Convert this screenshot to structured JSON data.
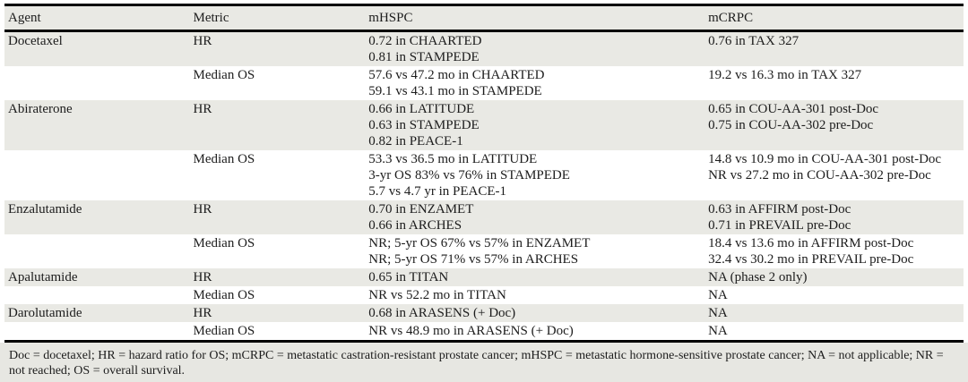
{
  "table": {
    "columns": {
      "agent": "Agent",
      "metric": "Metric",
      "mhspc": "mHSPC",
      "mcrpc": "mCRPC"
    },
    "rows": [
      {
        "agent": "Docetaxel",
        "metric": "HR",
        "mhspc": "0.72 in CHAARTED\n0.81 in STAMPEDE",
        "mcrpc": "0.76 in TAX 327"
      },
      {
        "agent": "",
        "metric": "Median OS",
        "mhspc": "57.6 vs 47.2 mo in CHAARTED\n59.1 vs 43.1 mo in STAMPEDE",
        "mcrpc": "19.2 vs 16.3 mo in TAX 327"
      },
      {
        "agent": "Abiraterone",
        "metric": "HR",
        "mhspc": "0.66 in LATITUDE\n0.63 in STAMPEDE\n0.82 in PEACE-1",
        "mcrpc": "0.65 in COU-AA-301 post-Doc\n0.75 in COU-AA-302 pre-Doc"
      },
      {
        "agent": "",
        "metric": "Median OS",
        "mhspc": "53.3 vs 36.5 mo in LATITUDE\n3-yr OS 83% vs 76% in STAMPEDE\n5.7 vs 4.7 yr in PEACE-1",
        "mcrpc": "14.8 vs 10.9 mo in COU-AA-301 post-Doc\nNR vs 27.2 mo in COU-AA-302 pre-Doc"
      },
      {
        "agent": "Enzalutamide",
        "metric": "HR",
        "mhspc": "0.70 in ENZAMET\n0.66 in ARCHES",
        "mcrpc": "0.63 in AFFIRM post-Doc\n0.71 in PREVAIL pre-Doc"
      },
      {
        "agent": "",
        "metric": "Median OS",
        "mhspc": "NR; 5-yr OS 67% vs 57% in ENZAMET\nNR; 5-yr OS 71% vs 57% in ARCHES",
        "mcrpc": "18.4 vs 13.6 mo in AFFIRM post-Doc\n32.4 vs 30.2 mo in PREVAIL pre-Doc"
      },
      {
        "agent": "Apalutamide",
        "metric": "HR",
        "mhspc": "0.65 in TITAN",
        "mcrpc": "NA (phase 2 only)"
      },
      {
        "agent": "",
        "metric": "Median OS",
        "mhspc": "NR vs 52.2 mo in TITAN",
        "mcrpc": "NA"
      },
      {
        "agent": "Darolutamide",
        "metric": "HR",
        "mhspc": "0.68 in ARASENS (+ Doc)",
        "mcrpc": "NA"
      },
      {
        "agent": "",
        "metric": "Median OS",
        "mhspc": "NR vs 48.9 mo in ARASENS (+ Doc)",
        "mcrpc": "NA"
      }
    ],
    "footnote": "Doc = docetaxel; HR = hazard ratio for OS; mCRPC = metastatic castration-resistant prostate cancer; mHSPC = metastatic hormone-sensitive prostate cancer; NA = not applicable; NR = not reached; OS = overall survival.",
    "colors": {
      "row_shade": "#e9e9e4",
      "footnote_bg": "#e7e7e2",
      "rule": "#000000",
      "text": "#1c1c1c"
    }
  }
}
